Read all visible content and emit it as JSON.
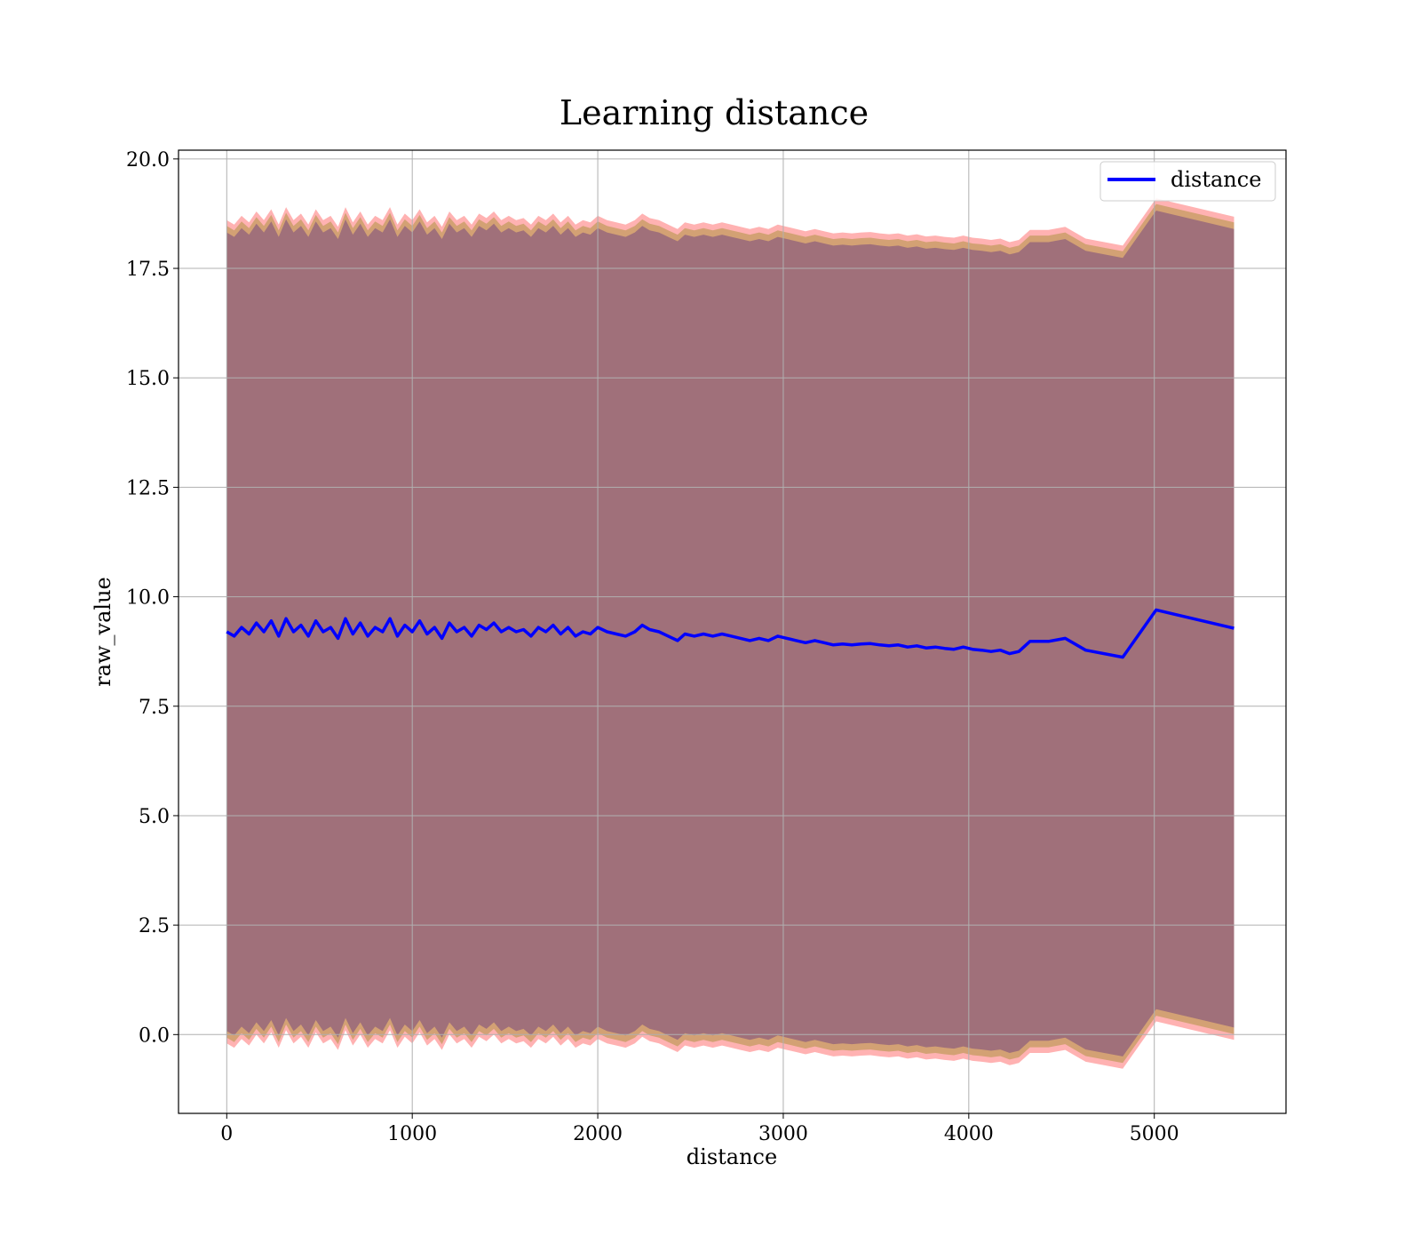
{
  "chart_data": {
    "type": "line",
    "title": "Learning distance",
    "xlabel": "distance",
    "ylabel": "raw_value",
    "xlim": [
      -260,
      5710
    ],
    "ylim": [
      -1.8,
      20.2
    ],
    "xticks": [
      0,
      1000,
      2000,
      3000,
      4000,
      5000
    ],
    "yticks": [
      0.0,
      2.5,
      5.0,
      7.5,
      10.0,
      12.5,
      15.0,
      17.5,
      20.0
    ],
    "xtick_labels": [
      "0",
      "1000",
      "2000",
      "3000",
      "4000",
      "5000"
    ],
    "ytick_labels": [
      "0.0",
      "2.5",
      "5.0",
      "7.5",
      "10.0",
      "12.5",
      "15.0",
      "17.5",
      "20.0"
    ],
    "grid": true,
    "legend": {
      "position": "top-right",
      "entries": [
        "distance"
      ]
    },
    "colors": {
      "line": "#0000ff",
      "outer_band": "#ff0000",
      "middle_band": "#808000",
      "inner_band": "#800080",
      "inner_fill": "#a0707a"
    },
    "series": [
      {
        "name": "distance",
        "x": [
          0,
          40,
          80,
          120,
          160,
          200,
          240,
          280,
          320,
          360,
          400,
          440,
          480,
          520,
          560,
          600,
          640,
          680,
          720,
          760,
          800,
          840,
          880,
          920,
          960,
          1000,
          1040,
          1080,
          1120,
          1160,
          1200,
          1240,
          1280,
          1320,
          1360,
          1400,
          1440,
          1480,
          1520,
          1560,
          1600,
          1640,
          1680,
          1720,
          1760,
          1800,
          1840,
          1880,
          1920,
          1960,
          2000,
          2050,
          2100,
          2150,
          2200,
          2240,
          2280,
          2330,
          2380,
          2430,
          2470,
          2520,
          2570,
          2620,
          2670,
          2720,
          2770,
          2820,
          2870,
          2920,
          2970,
          3020,
          3070,
          3120,
          3170,
          3220,
          3270,
          3320,
          3370,
          3420,
          3470,
          3520,
          3570,
          3620,
          3670,
          3720,
          3770,
          3820,
          3870,
          3920,
          3970,
          4020,
          4070,
          4120,
          4170,
          4220,
          4270,
          4330,
          4430,
          4520,
          4630,
          4830,
          5010,
          5430
        ],
        "values": [
          9.2,
          9.1,
          9.3,
          9.15,
          9.4,
          9.2,
          9.45,
          9.1,
          9.5,
          9.2,
          9.35,
          9.1,
          9.45,
          9.2,
          9.3,
          9.05,
          9.5,
          9.15,
          9.4,
          9.1,
          9.3,
          9.2,
          9.5,
          9.1,
          9.35,
          9.2,
          9.45,
          9.15,
          9.3,
          9.05,
          9.4,
          9.2,
          9.3,
          9.1,
          9.35,
          9.25,
          9.4,
          9.2,
          9.3,
          9.2,
          9.25,
          9.1,
          9.3,
          9.2,
          9.35,
          9.15,
          9.3,
          9.1,
          9.2,
          9.15,
          9.3,
          9.2,
          9.15,
          9.1,
          9.2,
          9.35,
          9.25,
          9.2,
          9.1,
          9.0,
          9.15,
          9.1,
          9.15,
          9.1,
          9.15,
          9.1,
          9.05,
          9.0,
          9.05,
          9.0,
          9.1,
          9.05,
          9.0,
          8.95,
          9.0,
          8.95,
          8.9,
          8.92,
          8.9,
          8.92,
          8.93,
          8.9,
          8.88,
          8.9,
          8.85,
          8.88,
          8.83,
          8.85,
          8.82,
          8.8,
          8.85,
          8.8,
          8.78,
          8.75,
          8.78,
          8.7,
          8.75,
          8.98,
          8.98,
          9.05,
          8.78,
          8.62,
          9.7,
          9.28
        ]
      }
    ],
    "bands": [
      {
        "name": "upper_envelope",
        "x": [
          0,
          40,
          80,
          120,
          160,
          200,
          240,
          280,
          320,
          360,
          400,
          440,
          480,
          520,
          560,
          600,
          640,
          680,
          720,
          760,
          800,
          840,
          880,
          920,
          960,
          1000,
          1040,
          1080,
          1120,
          1160,
          1200,
          1240,
          1280,
          1320,
          1360,
          1400,
          1440,
          1480,
          1520,
          1560,
          1600,
          1640,
          1680,
          1720,
          1760,
          1800,
          1840,
          1880,
          1920,
          1960,
          2000,
          2050,
          2100,
          2150,
          2200,
          2240,
          2280,
          2330,
          2380,
          2430,
          2470,
          2520,
          2570,
          2620,
          2670,
          2720,
          2770,
          2820,
          2870,
          2920,
          2970,
          3020,
          3070,
          3120,
          3170,
          3220,
          3270,
          3320,
          3370,
          3420,
          3470,
          3520,
          3570,
          3620,
          3670,
          3720,
          3770,
          3820,
          3870,
          3920,
          3970,
          4020,
          4070,
          4120,
          4170,
          4220,
          4270,
          4330,
          4430,
          4520,
          4630,
          4830,
          5010,
          5430
        ],
        "values": [
          18.6,
          18.5,
          18.7,
          18.55,
          18.8,
          18.6,
          18.85,
          18.5,
          18.9,
          18.6,
          18.75,
          18.5,
          18.85,
          18.6,
          18.7,
          18.45,
          18.9,
          18.55,
          18.8,
          18.5,
          18.7,
          18.6,
          18.9,
          18.5,
          18.75,
          18.6,
          18.85,
          18.55,
          18.7,
          18.45,
          18.8,
          18.6,
          18.7,
          18.5,
          18.75,
          18.65,
          18.8,
          18.6,
          18.7,
          18.6,
          18.65,
          18.5,
          18.7,
          18.6,
          18.75,
          18.55,
          18.7,
          18.5,
          18.6,
          18.55,
          18.7,
          18.6,
          18.55,
          18.5,
          18.6,
          18.75,
          18.65,
          18.6,
          18.5,
          18.4,
          18.55,
          18.5,
          18.55,
          18.5,
          18.55,
          18.5,
          18.45,
          18.4,
          18.45,
          18.4,
          18.5,
          18.45,
          18.4,
          18.35,
          18.4,
          18.35,
          18.3,
          18.32,
          18.3,
          18.32,
          18.33,
          18.3,
          18.28,
          18.3,
          18.25,
          18.28,
          18.23,
          18.25,
          18.22,
          18.2,
          18.25,
          18.2,
          18.18,
          18.15,
          18.18,
          18.1,
          18.15,
          18.38,
          18.38,
          18.45,
          18.18,
          18.02,
          19.1,
          18.68
        ]
      },
      {
        "name": "lower_envelope",
        "x": [
          0,
          40,
          80,
          120,
          160,
          200,
          240,
          280,
          320,
          360,
          400,
          440,
          480,
          520,
          560,
          600,
          640,
          680,
          720,
          760,
          800,
          840,
          880,
          920,
          960,
          1000,
          1040,
          1080,
          1120,
          1160,
          1200,
          1240,
          1280,
          1320,
          1360,
          1400,
          1440,
          1480,
          1520,
          1560,
          1600,
          1640,
          1680,
          1720,
          1760,
          1800,
          1840,
          1880,
          1920,
          1960,
          2000,
          2050,
          2100,
          2150,
          2200,
          2240,
          2280,
          2330,
          2380,
          2430,
          2470,
          2520,
          2570,
          2620,
          2670,
          2720,
          2770,
          2820,
          2870,
          2920,
          2970,
          3020,
          3070,
          3120,
          3170,
          3220,
          3270,
          3320,
          3370,
          3420,
          3470,
          3520,
          3570,
          3620,
          3670,
          3720,
          3770,
          3820,
          3870,
          3920,
          3970,
          4020,
          4070,
          4120,
          4170,
          4220,
          4270,
          4330,
          4430,
          4520,
          4630,
          4830,
          5010,
          5430
        ],
        "values": [
          -0.2,
          -0.3,
          -0.1,
          -0.25,
          0.0,
          -0.2,
          0.05,
          -0.3,
          0.1,
          -0.2,
          -0.05,
          -0.3,
          0.05,
          -0.2,
          -0.1,
          -0.35,
          0.1,
          -0.25,
          0.0,
          -0.3,
          -0.1,
          -0.2,
          0.1,
          -0.3,
          -0.05,
          -0.2,
          0.05,
          -0.25,
          -0.1,
          -0.35,
          0.0,
          -0.2,
          -0.1,
          -0.3,
          -0.05,
          -0.15,
          0.0,
          -0.2,
          -0.1,
          -0.2,
          -0.15,
          -0.3,
          -0.1,
          -0.2,
          -0.05,
          -0.25,
          -0.1,
          -0.3,
          -0.2,
          -0.25,
          -0.1,
          -0.2,
          -0.25,
          -0.3,
          -0.2,
          -0.05,
          -0.15,
          -0.2,
          -0.3,
          -0.4,
          -0.25,
          -0.3,
          -0.25,
          -0.3,
          -0.25,
          -0.3,
          -0.35,
          -0.4,
          -0.35,
          -0.4,
          -0.3,
          -0.35,
          -0.4,
          -0.45,
          -0.4,
          -0.45,
          -0.5,
          -0.48,
          -0.5,
          -0.48,
          -0.47,
          -0.5,
          -0.52,
          -0.5,
          -0.55,
          -0.52,
          -0.57,
          -0.55,
          -0.58,
          -0.6,
          -0.55,
          -0.6,
          -0.62,
          -0.65,
          -0.62,
          -0.7,
          -0.65,
          -0.42,
          -0.42,
          -0.35,
          -0.62,
          -0.78,
          0.3,
          -0.12
        ]
      }
    ]
  }
}
